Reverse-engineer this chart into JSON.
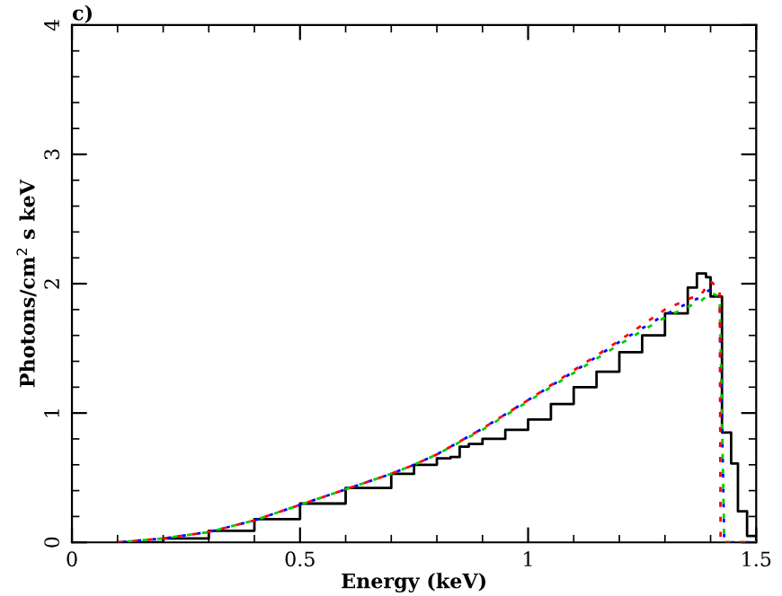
{
  "chart_data": {
    "type": "line",
    "title": "c)",
    "xlabel": "Energy (keV)",
    "ylabel": "Photons/cm$^{2}$ s keV",
    "xlim": [
      0,
      1.5
    ],
    "ylim": [
      0,
      4
    ],
    "xticks": [
      0,
      0.5,
      1,
      1.5
    ],
    "yticks": [
      0,
      1,
      2,
      3,
      4
    ],
    "grid": false,
    "legend": false,
    "series": [
      {
        "type": "step",
        "color": "#000000",
        "line_style": "solid",
        "x": [
          0.1,
          0.2,
          0.3,
          0.4,
          0.5,
          0.6,
          0.7,
          0.75,
          0.8,
          0.83,
          0.85,
          0.87,
          0.9,
          0.95,
          1.0,
          1.05,
          1.1,
          1.15,
          1.2,
          1.25,
          1.3,
          1.35,
          1.37,
          1.39,
          1.4,
          1.42,
          1.425,
          1.445,
          1.46,
          1.48,
          1.5
        ],
        "values": [
          0.0,
          0.03,
          0.09,
          0.18,
          0.3,
          0.42,
          0.53,
          0.6,
          0.65,
          0.66,
          0.74,
          0.76,
          0.8,
          0.87,
          0.95,
          1.07,
          1.2,
          1.32,
          1.47,
          1.6,
          1.77,
          1.97,
          2.08,
          2.05,
          1.9,
          1.9,
          0.85,
          0.61,
          0.24,
          0.05,
          0.0
        ]
      },
      {
        "color": "#ff0000",
        "line_style": "dashed",
        "x": [
          0.1,
          0.2,
          0.3,
          0.4,
          0.5,
          0.6,
          0.7,
          0.75,
          0.8,
          0.9,
          1.0,
          1.1,
          1.2,
          1.3,
          1.35,
          1.38,
          1.4,
          1.42,
          1.422,
          1.5
        ],
        "values": [
          0.0,
          0.03,
          0.08,
          0.17,
          0.29,
          0.41,
          0.53,
          0.6,
          0.68,
          0.88,
          1.1,
          1.33,
          1.56,
          1.8,
          1.88,
          1.92,
          2.02,
          1.95,
          0.0,
          0.0
        ]
      },
      {
        "color": "#00cc00",
        "line_style": "dashed",
        "x": [
          0.1,
          0.2,
          0.3,
          0.4,
          0.5,
          0.6,
          0.7,
          0.75,
          0.8,
          0.9,
          1.0,
          1.1,
          1.2,
          1.3,
          1.35,
          1.38,
          1.4,
          1.42,
          1.43,
          1.5
        ],
        "values": [
          0.0,
          0.03,
          0.08,
          0.17,
          0.29,
          0.41,
          0.53,
          0.6,
          0.68,
          0.87,
          1.09,
          1.31,
          1.53,
          1.74,
          1.82,
          1.87,
          1.93,
          1.9,
          0.0,
          0.0
        ]
      },
      {
        "color": "#0000ff",
        "line_style": "dotted",
        "x": [
          0.1,
          0.2,
          0.3,
          0.4,
          0.5,
          0.6,
          0.7,
          0.75,
          0.8,
          0.9,
          1.0,
          1.1,
          1.2,
          1.3,
          1.35,
          1.38,
          1.4,
          1.42,
          1.43,
          1.5
        ],
        "values": [
          0.0,
          0.03,
          0.08,
          0.17,
          0.29,
          0.41,
          0.53,
          0.6,
          0.68,
          0.88,
          1.1,
          1.32,
          1.55,
          1.76,
          1.85,
          1.9,
          1.96,
          1.92,
          0.0,
          0.0
        ]
      }
    ]
  }
}
